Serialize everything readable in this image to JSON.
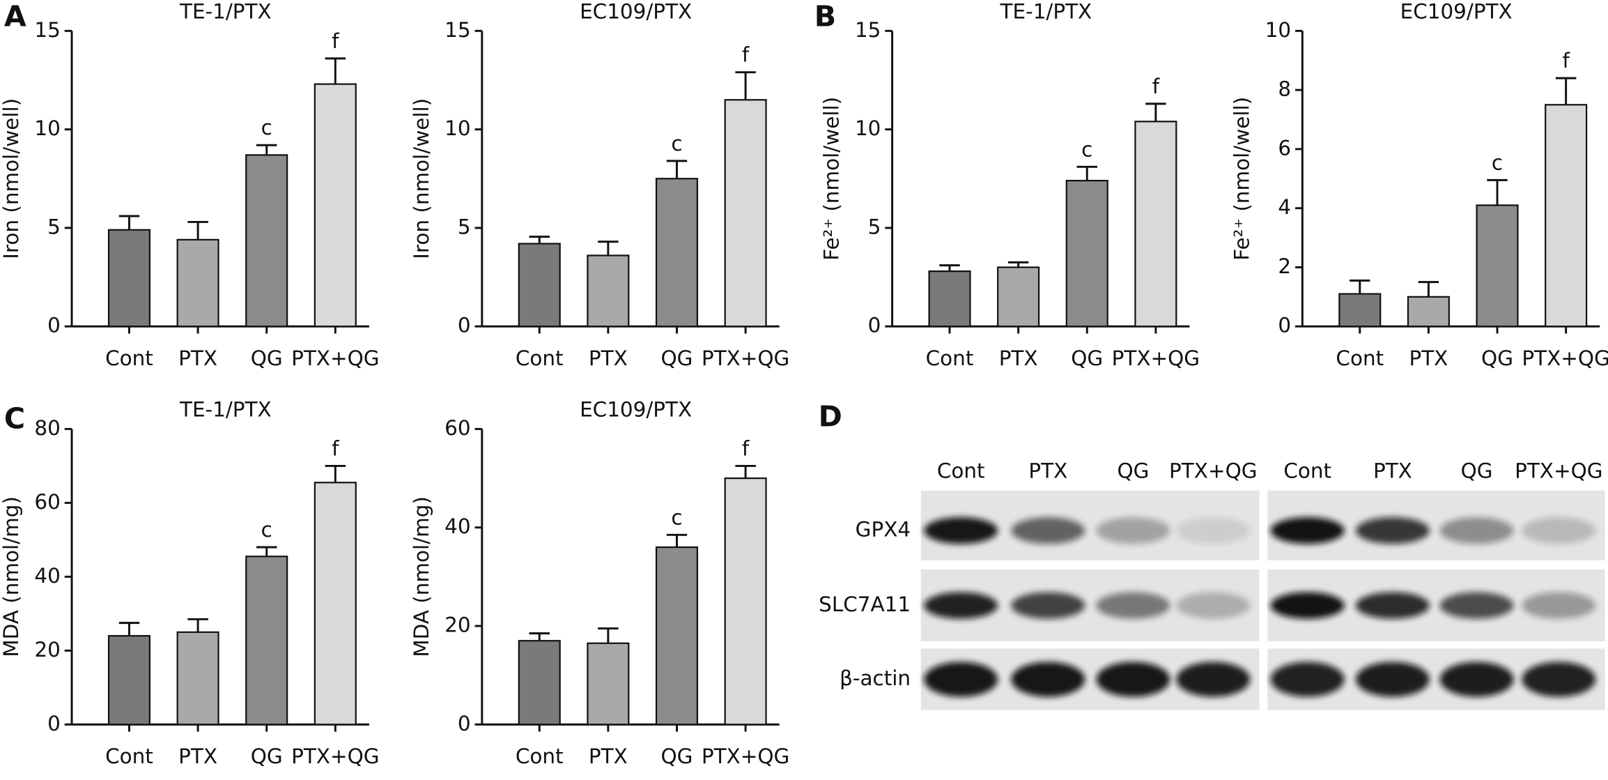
{
  "panel_labels": [
    "A",
    "B",
    "C",
    "D"
  ],
  "chart_data": [
    {
      "type": "bar",
      "title": "TE-1/PTX",
      "ylabel": "Iron (nmol/well)",
      "categories": [
        "Cont",
        "PTX",
        "QG",
        "PTX+QG"
      ],
      "values": [
        4.9,
        4.4,
        8.7,
        12.3
      ],
      "errors": [
        0.7,
        0.9,
        0.5,
        1.3
      ],
      "bar_labels": [
        null,
        null,
        "c",
        "f"
      ],
      "colors": [
        "#7a7a7a",
        "#a9a9a9",
        "#8c8c8c",
        "#d9d9d9"
      ],
      "ylim": [
        0,
        15
      ],
      "yticks": [
        0,
        5,
        10,
        15
      ]
    },
    {
      "type": "bar",
      "title": "EC109/PTX",
      "ylabel": "Iron (nmol/well)",
      "categories": [
        "Cont",
        "PTX",
        "QG",
        "PTX+QG"
      ],
      "values": [
        4.2,
        3.6,
        7.5,
        11.5
      ],
      "errors": [
        0.35,
        0.7,
        0.9,
        1.4
      ],
      "bar_labels": [
        null,
        null,
        "c",
        "f"
      ],
      "colors": [
        "#7a7a7a",
        "#a9a9a9",
        "#8c8c8c",
        "#d9d9d9"
      ],
      "ylim": [
        0,
        15
      ],
      "yticks": [
        0,
        5,
        10,
        15
      ]
    },
    {
      "type": "bar",
      "title": "TE-1/PTX",
      "ylabel": "Fe²⁺ (nmol/well)",
      "categories": [
        "Cont",
        "PTX",
        "QG",
        "PTX+QG"
      ],
      "values": [
        2.8,
        3.0,
        7.4,
        10.4
      ],
      "errors": [
        0.3,
        0.25,
        0.7,
        0.9
      ],
      "bar_labels": [
        null,
        null,
        "c",
        "f"
      ],
      "colors": [
        "#7a7a7a",
        "#a9a9a9",
        "#8c8c8c",
        "#d9d9d9"
      ],
      "ylim": [
        0,
        15
      ],
      "yticks": [
        0,
        5,
        10,
        15
      ]
    },
    {
      "type": "bar",
      "title": "EC109/PTX",
      "ylabel": "Fe²⁺ (nmol/well)",
      "categories": [
        "Cont",
        "PTX",
        "QG",
        "PTX+QG"
      ],
      "values": [
        1.1,
        1.0,
        4.1,
        7.5
      ],
      "errors": [
        0.45,
        0.5,
        0.85,
        0.9
      ],
      "bar_labels": [
        null,
        null,
        "c",
        "f"
      ],
      "colors": [
        "#7a7a7a",
        "#a9a9a9",
        "#8c8c8c",
        "#d9d9d9"
      ],
      "ylim": [
        0,
        10
      ],
      "yticks": [
        0,
        2,
        4,
        6,
        8,
        10
      ]
    },
    {
      "type": "bar",
      "title": "TE-1/PTX",
      "ylabel": "MDA (nmol/mg)",
      "categories": [
        "Cont",
        "PTX",
        "QG",
        "PTX+QG"
      ],
      "values": [
        24,
        25,
        45.5,
        65.5
      ],
      "errors": [
        3.5,
        3.5,
        2.5,
        4.5
      ],
      "bar_labels": [
        null,
        null,
        "c",
        "f"
      ],
      "colors": [
        "#7a7a7a",
        "#a9a9a9",
        "#8c8c8c",
        "#d9d9d9"
      ],
      "ylim": [
        0,
        80
      ],
      "yticks": [
        0,
        20,
        40,
        60,
        80
      ]
    },
    {
      "type": "bar",
      "title": "EC109/PTX",
      "ylabel": "MDA (nmol/mg)",
      "categories": [
        "Cont",
        "PTX",
        "QG",
        "PTX+QG"
      ],
      "values": [
        17,
        16.5,
        36,
        50
      ],
      "errors": [
        1.5,
        3,
        2.5,
        2.5
      ],
      "bar_labels": [
        null,
        null,
        "c",
        "f"
      ],
      "colors": [
        "#7a7a7a",
        "#a9a9a9",
        "#8c8c8c",
        "#d9d9d9"
      ],
      "ylim": [
        0,
        60
      ],
      "yticks": [
        0,
        20,
        40,
        60
      ]
    }
  ],
  "blot": {
    "lanes": [
      "Cont",
      "PTX",
      "QG",
      "PTX+QG",
      "Cont",
      "PTX",
      "QG",
      "PTX+QG"
    ],
    "rows": [
      "GPX4",
      "SLC7A11",
      "β-actin"
    ]
  }
}
